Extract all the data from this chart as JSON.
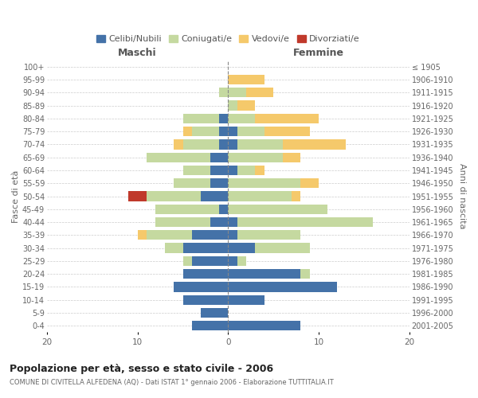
{
  "age_groups": [
    "0-4",
    "5-9",
    "10-14",
    "15-19",
    "20-24",
    "25-29",
    "30-34",
    "35-39",
    "40-44",
    "45-49",
    "50-54",
    "55-59",
    "60-64",
    "65-69",
    "70-74",
    "75-79",
    "80-84",
    "85-89",
    "90-94",
    "95-99",
    "100+"
  ],
  "birth_years": [
    "2001-2005",
    "1996-2000",
    "1991-1995",
    "1986-1990",
    "1981-1985",
    "1976-1980",
    "1971-1975",
    "1966-1970",
    "1961-1965",
    "1956-1960",
    "1951-1955",
    "1946-1950",
    "1941-1945",
    "1936-1940",
    "1931-1935",
    "1926-1930",
    "1921-1925",
    "1916-1920",
    "1911-1915",
    "1906-1910",
    "≤ 1905"
  ],
  "males": {
    "celibi": [
      4,
      3,
      5,
      6,
      5,
      4,
      5,
      4,
      2,
      1,
      3,
      2,
      2,
      2,
      1,
      1,
      1,
      0,
      0,
      0,
      0
    ],
    "coniugati": [
      0,
      0,
      0,
      0,
      0,
      1,
      2,
      5,
      6,
      7,
      6,
      4,
      3,
      7,
      4,
      3,
      4,
      0,
      1,
      0,
      0
    ],
    "vedovi": [
      0,
      0,
      0,
      0,
      0,
      0,
      0,
      1,
      0,
      0,
      0,
      0,
      0,
      0,
      1,
      1,
      0,
      0,
      0,
      0,
      0
    ],
    "divorziati": [
      0,
      0,
      0,
      0,
      0,
      0,
      0,
      0,
      0,
      0,
      2,
      0,
      0,
      0,
      0,
      0,
      0,
      0,
      0,
      0,
      0
    ]
  },
  "females": {
    "nubili": [
      8,
      0,
      4,
      12,
      8,
      1,
      3,
      1,
      1,
      0,
      0,
      0,
      1,
      0,
      1,
      1,
      0,
      0,
      0,
      0,
      0
    ],
    "coniugate": [
      0,
      0,
      0,
      0,
      1,
      1,
      6,
      7,
      15,
      11,
      7,
      8,
      2,
      6,
      5,
      3,
      3,
      1,
      2,
      0,
      0
    ],
    "vedove": [
      0,
      0,
      0,
      0,
      0,
      0,
      0,
      0,
      0,
      0,
      1,
      2,
      1,
      2,
      7,
      5,
      7,
      2,
      3,
      4,
      0
    ],
    "divorziate": [
      0,
      0,
      0,
      0,
      0,
      0,
      0,
      0,
      0,
      0,
      0,
      0,
      0,
      0,
      0,
      0,
      0,
      0,
      0,
      0,
      0
    ]
  },
  "colors": {
    "celibi": "#4472a8",
    "coniugati": "#c5d9a0",
    "vedovi": "#f5c96b",
    "divorziati": "#c0392b"
  },
  "title": "Popolazione per età, sesso e stato civile - 2006",
  "subtitle": "COMUNE DI CIVITELLA ALFEDENA (AQ) - Dati ISTAT 1° gennaio 2006 - Elaborazione TUTTITALIA.IT",
  "xlabel_left": "Maschi",
  "xlabel_right": "Femmine",
  "ylabel_left": "Fasce di età",
  "ylabel_right": "Anni di nascita",
  "legend_labels": [
    "Celibi/Nubili",
    "Coniugati/e",
    "Vedovi/e",
    "Divorziati/e"
  ],
  "xlim": 20,
  "bg_color": "#ffffff",
  "grid_color": "#cccccc"
}
